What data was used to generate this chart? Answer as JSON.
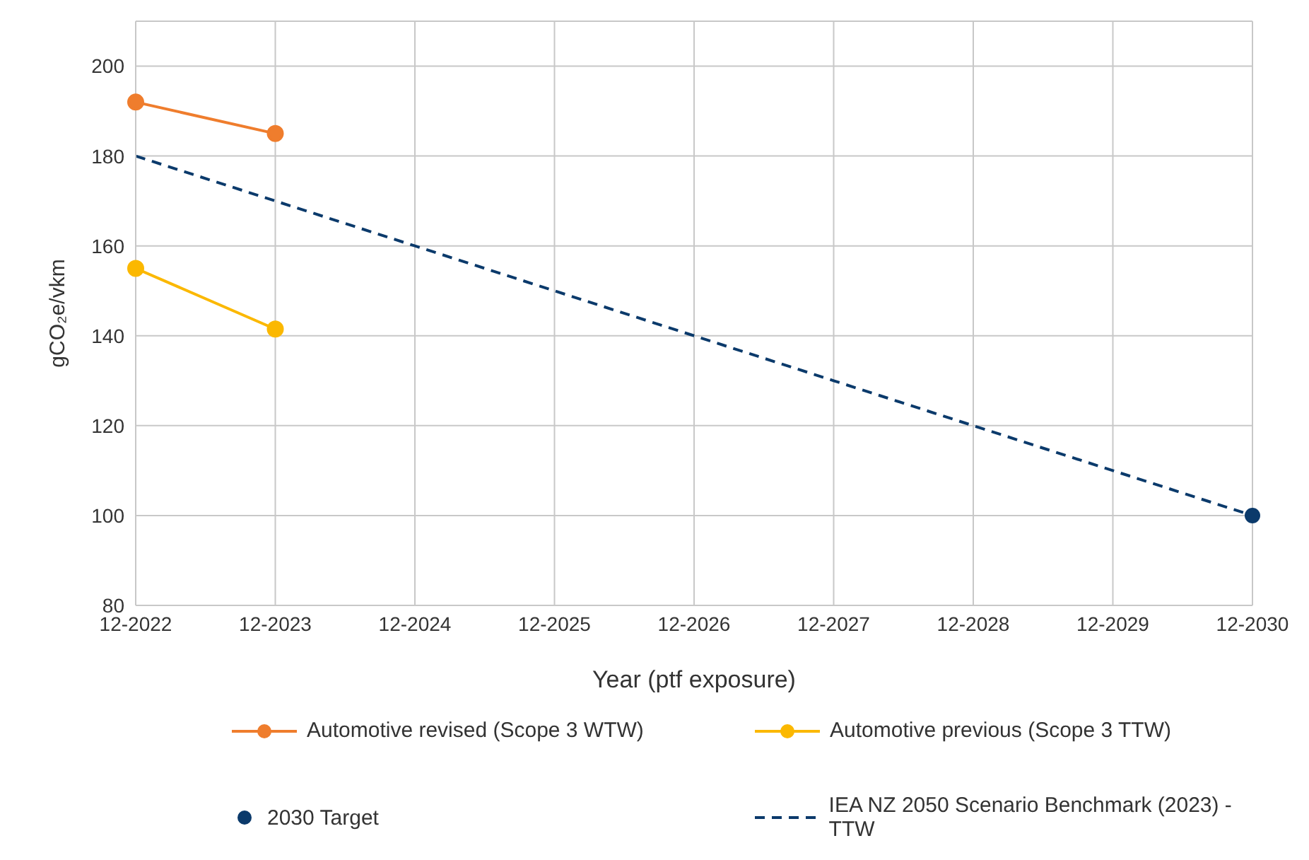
{
  "chart_data": {
    "type": "line",
    "xlabel": "Year (ptf exposure)",
    "ylabel": "gCO₂e/vkm",
    "categories": [
      "12-2022",
      "12-2023",
      "12-2024",
      "12-2025",
      "12-2026",
      "12-2027",
      "12-2028",
      "12-2029",
      "12-2030"
    ],
    "series": [
      {
        "name": "Automotive revised (Scope 3 WTW)",
        "color": "#ef7d2d",
        "values": [
          192,
          185,
          null,
          null,
          null,
          null,
          null,
          null,
          null
        ],
        "marker": "circle",
        "line_style": "solid"
      },
      {
        "name": "Automotive previous (Scope 3 TTW)",
        "color": "#fbb800",
        "values": [
          155,
          141.5,
          null,
          null,
          null,
          null,
          null,
          null,
          null
        ],
        "marker": "circle",
        "line_style": "solid"
      },
      {
        "name": "2030 Target",
        "type": "scatter",
        "color": "#0b3a6b",
        "values": [
          null,
          null,
          null,
          null,
          null,
          null,
          null,
          null,
          100
        ],
        "marker": "circle"
      },
      {
        "name": "IEA NZ 2050 Scenario Benchmark (2023) - TTW",
        "color": "#0b3a6b",
        "values": [
          180,
          170,
          160,
          150,
          140,
          130,
          120,
          110,
          100
        ],
        "marker": "none",
        "line_style": "dashed"
      }
    ],
    "ylim": [
      80,
      210
    ],
    "yticks": [
      80,
      100,
      120,
      140,
      160,
      180,
      200
    ],
    "grid": true,
    "legend": "bottom"
  }
}
